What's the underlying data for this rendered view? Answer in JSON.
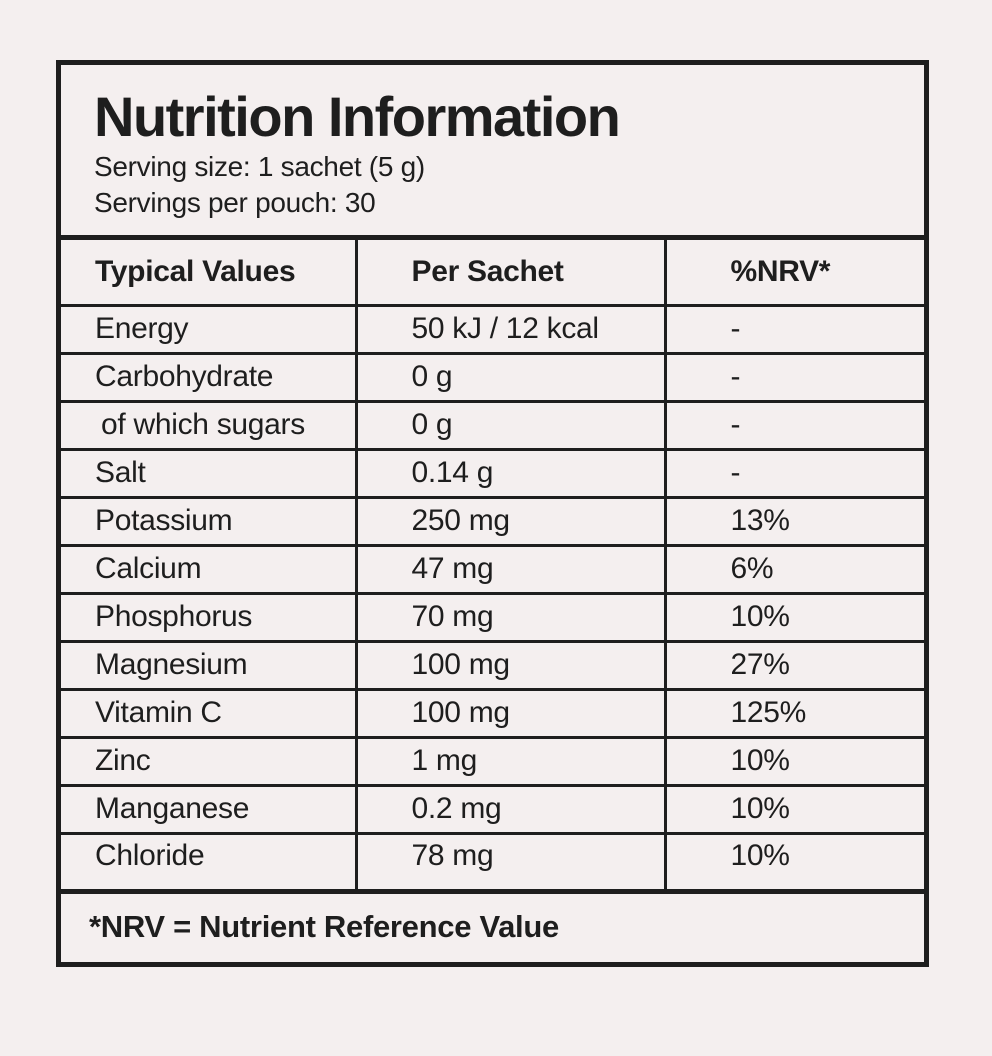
{
  "header": {
    "title": "Nutrition Information",
    "serving_size": "Serving size: 1 sachet (5 g)",
    "servings_per_pouch": "Servings per pouch: 30"
  },
  "table": {
    "columns": [
      "Typical Values",
      "Per Sachet",
      "%NRV*"
    ],
    "rows": [
      {
        "nutrient": "Energy",
        "per_sachet": "50 kJ / 12 kcal",
        "nrv": "-"
      },
      {
        "nutrient": "Carbohydrate",
        "per_sachet": "0 g",
        "nrv": "-"
      },
      {
        "nutrient": "of which sugars",
        "per_sachet": "0 g",
        "nrv": "-"
      },
      {
        "nutrient": "Salt",
        "per_sachet": "0.14 g",
        "nrv": "-"
      },
      {
        "nutrient": "Potassium",
        "per_sachet": "250 mg",
        "nrv": "13%"
      },
      {
        "nutrient": "Calcium",
        "per_sachet": "47 mg",
        "nrv": "6%"
      },
      {
        "nutrient": "Phosphorus",
        "per_sachet": "70 mg",
        "nrv": "10%"
      },
      {
        "nutrient": "Magnesium",
        "per_sachet": "100 mg",
        "nrv": "27%"
      },
      {
        "nutrient": "Vitamin C",
        "per_sachet": "100 mg",
        "nrv": "125%"
      },
      {
        "nutrient": "Zinc",
        "per_sachet": "1 mg",
        "nrv": "10%"
      },
      {
        "nutrient": "Manganese",
        "per_sachet": "0.2 mg",
        "nrv": "10%"
      },
      {
        "nutrient": "Chloride",
        "per_sachet": "78 mg",
        "nrv": "10%"
      }
    ]
  },
  "footer": {
    "note": "*NRV = Nutrient Reference Value"
  }
}
